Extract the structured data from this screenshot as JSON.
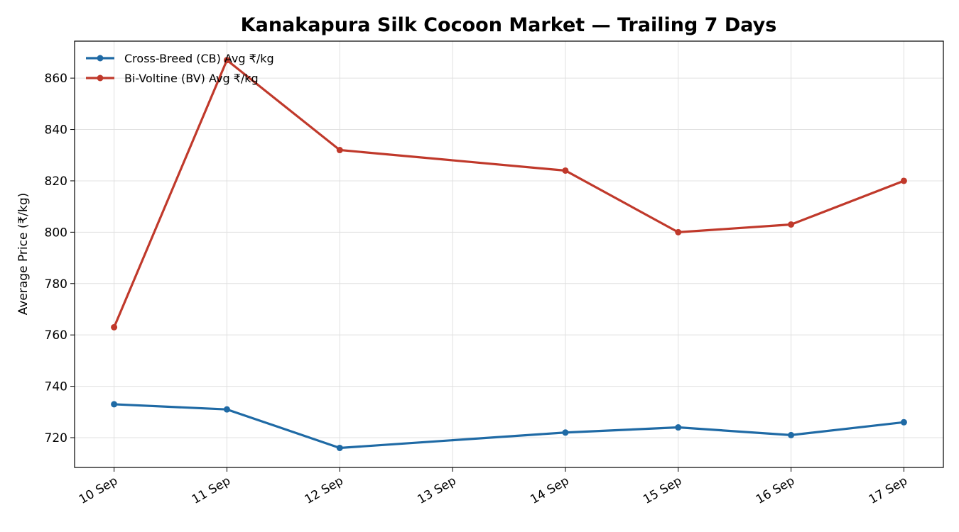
{
  "chart_data": {
    "type": "line",
    "title": "Kanakapura Silk Cocoon Market — Trailing 7 Days",
    "y_label": "Average Price (₹/kg)",
    "x": [
      "10 Sep",
      "11 Sep",
      "12 Sep",
      "14 Sep",
      "15 Sep",
      "16 Sep",
      "17 Sep"
    ],
    "xticks": [
      "10 Sep",
      "11 Sep",
      "12 Sep",
      "13 Sep",
      "14 Sep",
      "15 Sep",
      "16 Sep",
      "17 Sep"
    ],
    "series": [
      {
        "name": "Cross-Breed (CB) Avg ₹/kg",
        "color": "#1f6aa5",
        "values": [
          733,
          731,
          716,
          722,
          724,
          721,
          726
        ]
      },
      {
        "name": "Bi-Voltine (BV) Avg ₹/kg",
        "color": "#c0392b",
        "values": [
          763,
          867,
          832,
          824,
          800,
          803,
          820
        ]
      }
    ],
    "ylim": [
      708.4,
      874.4
    ],
    "yticks": [
      720,
      740,
      760,
      780,
      800,
      820,
      840,
      860
    ],
    "grid": true,
    "legend": "upper-left"
  }
}
